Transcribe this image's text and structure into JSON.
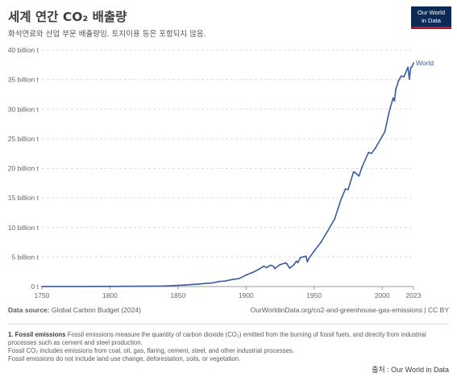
{
  "header": {
    "title": "세계 연간 CO₂ 배출량",
    "subtitle": "화석연료와 산업 부문 배출량임. 토지이용 등은 포함되지 않음."
  },
  "logo": {
    "line1": "Our World",
    "line2": "in Data",
    "bg_color": "#0b2a56",
    "accent_color": "#c8102e"
  },
  "chart_data": {
    "type": "line",
    "title": "세계 연간 CO₂ 배출량",
    "ylim": [
      0,
      40
    ],
    "yticks": [
      0,
      5,
      10,
      15,
      20,
      25,
      30,
      35,
      40
    ],
    "ytick_labels": [
      "0 t",
      "5 billion t",
      "10 billion t",
      "15 billion t",
      "20 billion t",
      "25 billion t",
      "30 billion t",
      "35 billion t",
      "40 billion t"
    ],
    "xlim": [
      1750,
      2023
    ],
    "xticks": [
      1750,
      1800,
      1850,
      1900,
      1950,
      2000,
      2023
    ],
    "grid": "horizontal dashed",
    "line_color": "#3a5ba0",
    "series": [
      {
        "name": "World",
        "x": [
          1750,
          1760,
          1770,
          1780,
          1790,
          1800,
          1810,
          1820,
          1830,
          1840,
          1850,
          1855,
          1860,
          1865,
          1870,
          1875,
          1880,
          1885,
          1890,
          1895,
          1900,
          1905,
          1910,
          1913,
          1915,
          1918,
          1920,
          1921,
          1925,
          1929,
          1930,
          1932,
          1935,
          1937,
          1938,
          1940,
          1944,
          1945,
          1946,
          1950,
          1955,
          1960,
          1965,
          1970,
          1973,
          1975,
          1979,
          1980,
          1983,
          1985,
          1990,
          1992,
          1995,
          2000,
          2002,
          2005,
          2008,
          2009,
          2010,
          2012,
          2014,
          2016,
          2019,
          2020,
          2021,
          2022,
          2023
        ],
        "y": [
          0.01,
          0.01,
          0.02,
          0.02,
          0.03,
          0.03,
          0.04,
          0.05,
          0.07,
          0.1,
          0.2,
          0.26,
          0.35,
          0.42,
          0.52,
          0.6,
          0.84,
          0.95,
          1.2,
          1.35,
          1.95,
          2.4,
          3.0,
          3.45,
          3.2,
          3.6,
          3.45,
          3.05,
          3.7,
          4.0,
          3.85,
          3.1,
          3.65,
          4.3,
          4.05,
          4.9,
          5.15,
          4.2,
          4.7,
          6.0,
          7.5,
          9.4,
          11.4,
          14.9,
          16.5,
          16.4,
          19.4,
          19.3,
          18.7,
          20.1,
          22.7,
          22.5,
          23.4,
          25.4,
          26.2,
          29.4,
          31.9,
          31.4,
          33.3,
          34.8,
          35.6,
          35.5,
          37.1,
          35.1,
          37.0,
          37.2,
          37.8
        ]
      }
    ]
  },
  "footer": {
    "source_label": "Data source:",
    "source_value": "Global Carbon Budget (2024)",
    "url": "OurWorldinData.org/co2-and-greenhouse-gas-emissions",
    "license": " | CC BY"
  },
  "notes": {
    "note_title": "1. Fossil emissions",
    "line1": "Fossil emissions measure the quantity of carbon dioxide (CO₂) emitted from the burning of fossil fuels, and directly from industrial processes such as cement and steel production.",
    "line2": "Fossil CO₂ includes emissions from coal, oil, gas, flaring, cement, steel, and other industrial processes.",
    "line3": "Fossil emissions do not include land use change, deforestation, soils, or vegetation."
  },
  "source_kr": "출처 : Our World in Data"
}
